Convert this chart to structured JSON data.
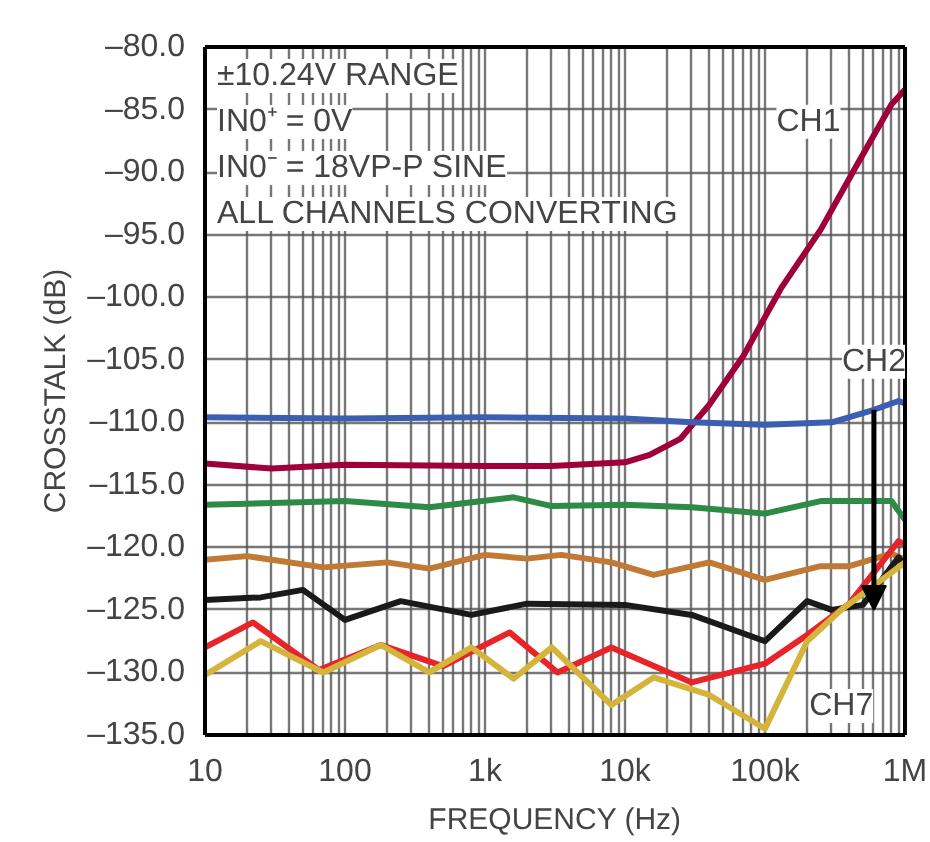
{
  "chart_data": {
    "type": "line",
    "xlabel": "FREQUENCY (Hz)",
    "ylabel": "CROSSTALK (dB)",
    "log": "x",
    "grid": true,
    "xlim": [
      10,
      1000000
    ],
    "xticks": [
      {
        "value": 10,
        "label": "10"
      },
      {
        "value": 100,
        "label": "100"
      },
      {
        "value": 1000,
        "label": "1k"
      },
      {
        "value": 10000,
        "label": "10k"
      },
      {
        "value": 100000,
        "label": "100k"
      },
      {
        "value": 1000000,
        "label": "1M"
      }
    ],
    "ylim": [
      -135,
      -80
    ],
    "yticks": [
      {
        "value": -135,
        "label": "–135.0"
      },
      {
        "value": -130,
        "label": "–130.0"
      },
      {
        "value": -125,
        "label": "–125.0"
      },
      {
        "value": -120,
        "label": "–120.0"
      },
      {
        "value": -115,
        "label": "–115.0"
      },
      {
        "value": -110,
        "label": "–110.0"
      },
      {
        "value": -105,
        "label": "–105.0"
      },
      {
        "value": -100,
        "label": "–100.0"
      },
      {
        "value": -95,
        "label": "–95.0"
      },
      {
        "value": -90,
        "label": "–90.0"
      },
      {
        "value": -85,
        "label": "–85.0"
      },
      {
        "value": -80,
        "label": "–80.0"
      }
    ],
    "annotations": [
      "±10.24V RANGE",
      "IN0⁺ = 0V",
      "IN0⁻ = 18VP-P SINE",
      "ALL CHANNELS CONVERTING"
    ],
    "series": [
      {
        "name": "CH1",
        "color": "#a0003a",
        "x": [
          10,
          30,
          100,
          1000,
          3000,
          10000,
          15000,
          25000,
          40000,
          70000,
          130000,
          250000,
          450000,
          800000,
          1000000
        ],
        "values": [
          -113.3,
          -113.7,
          -113.4,
          -113.5,
          -113.5,
          -113.2,
          -112.6,
          -111.3,
          -108.6,
          -104.7,
          -99.3,
          -94.6,
          -89.5,
          -84.6,
          -83.4
        ]
      },
      {
        "name": "CH2",
        "color": "#3a5fb0",
        "x": [
          10,
          100,
          1000,
          10000,
          30000,
          100000,
          300000,
          600000,
          900000,
          1000000
        ],
        "values": [
          -109.6,
          -109.7,
          -109.6,
          -109.7,
          -110.0,
          -110.2,
          -110.0,
          -109.0,
          -108.3,
          -108.5
        ]
      },
      {
        "color": "#2e8b45",
        "x": [
          10,
          100,
          400,
          1600,
          3000,
          10000,
          30000,
          100000,
          250000,
          800000,
          1000000
        ],
        "values": [
          -116.6,
          -116.3,
          -116.8,
          -116.0,
          -116.7,
          -116.6,
          -116.8,
          -117.3,
          -116.3,
          -116.3,
          -117.8
        ]
      },
      {
        "color": "#c07a35",
        "x": [
          10,
          20,
          70,
          200,
          400,
          1000,
          2000,
          3500,
          8000,
          16000,
          40000,
          100000,
          250000,
          400000,
          800000,
          1000000
        ],
        "values": [
          -121,
          -120.7,
          -121.6,
          -121.2,
          -121.7,
          -120.6,
          -120.9,
          -120.6,
          -121.2,
          -122.2,
          -121.2,
          -122.6,
          -121.5,
          -121.5,
          -120.5,
          -121
        ]
      },
      {
        "color": "#1a1a1a",
        "x": [
          10,
          25,
          50,
          100,
          250,
          800,
          2000,
          10000,
          30000,
          100000,
          200000,
          300000,
          500000,
          900000,
          1000000
        ],
        "values": [
          -124.2,
          -124,
          -123.4,
          -125.8,
          -124.3,
          -125.4,
          -124.5,
          -124.6,
          -125.4,
          -127.5,
          -124.3,
          -125,
          -124.6,
          -120.8,
          -121.5
        ]
      },
      {
        "color": "#e8242b",
        "x": [
          10,
          22,
          65,
          180,
          500,
          1500,
          3300,
          8000,
          30000,
          100000,
          200000,
          400000,
          900000,
          1000000
        ],
        "values": [
          -128,
          -126,
          -129.8,
          -127.8,
          -129.5,
          -126.8,
          -130,
          -128,
          -130.8,
          -129.3,
          -127,
          -124.5,
          -119.5,
          -119.8
        ]
      },
      {
        "name": "CH7",
        "color": "#d4b43a",
        "x": [
          10,
          25,
          70,
          180,
          400,
          800,
          1600,
          3000,
          8000,
          16000,
          40000,
          100000,
          200000,
          350000,
          700000,
          1000000
        ],
        "values": [
          -130.2,
          -127.5,
          -130,
          -127.8,
          -130,
          -128,
          -130.5,
          -128,
          -132.6,
          -130.4,
          -131.8,
          -134.5,
          -127.5,
          -125,
          -122.5,
          -121.2
        ]
      }
    ]
  }
}
